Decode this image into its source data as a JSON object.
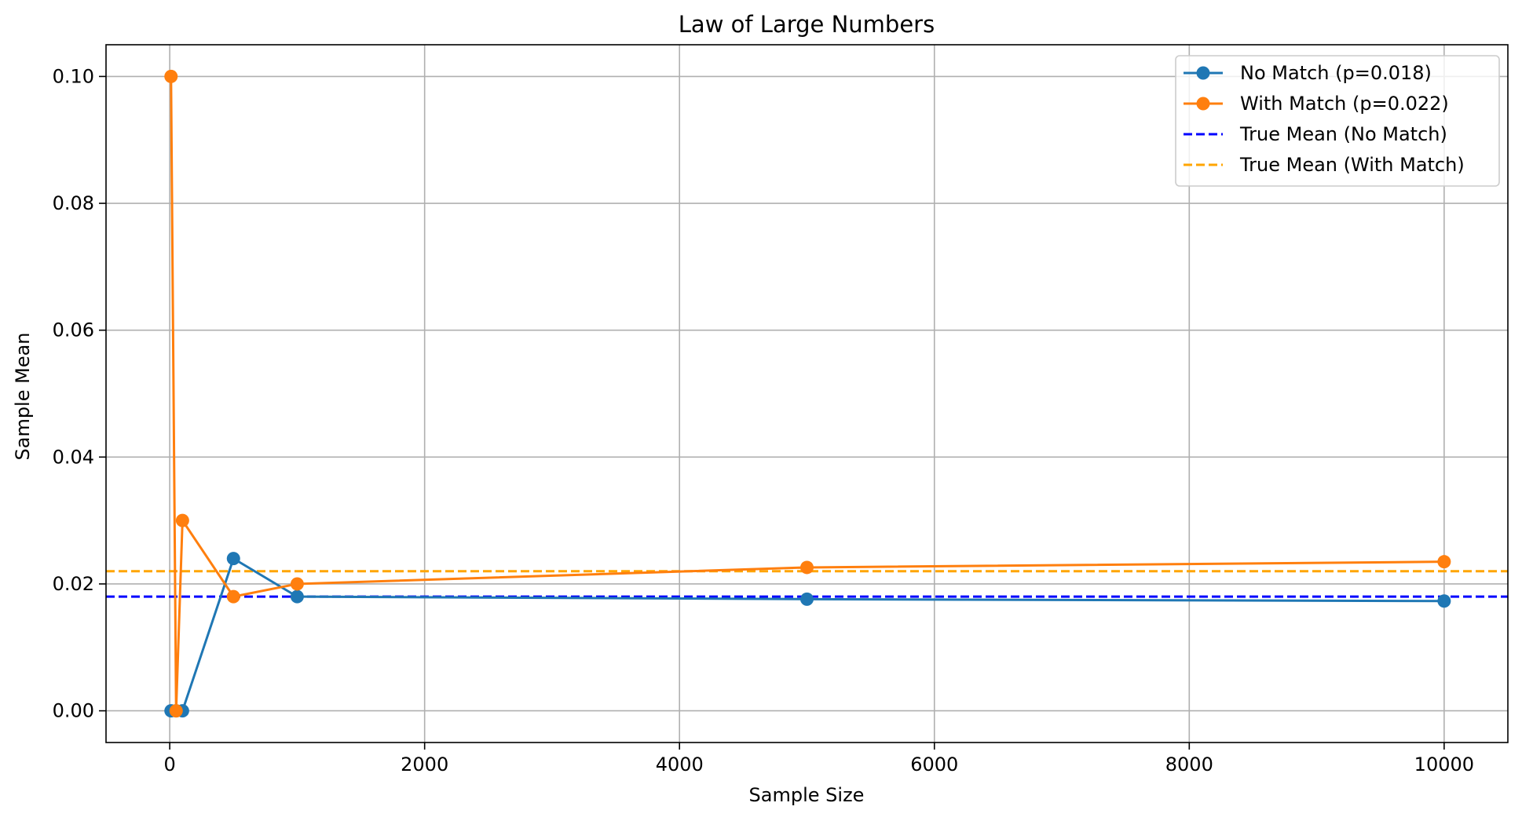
{
  "chart_data": {
    "type": "line",
    "title": "Law of Large Numbers",
    "xlabel": "Sample Size",
    "ylabel": "Sample Mean",
    "xlim": [
      -500,
      10500
    ],
    "ylim": [
      -0.005,
      0.105
    ],
    "xticks": [
      0,
      2000,
      4000,
      6000,
      8000,
      10000
    ],
    "xtick_labels": [
      "0",
      "2000",
      "4000",
      "6000",
      "8000",
      "10000"
    ],
    "yticks": [
      0.0,
      0.02,
      0.04,
      0.06,
      0.08,
      0.1
    ],
    "ytick_labels": [
      "0.00",
      "0.02",
      "0.04",
      "0.06",
      "0.08",
      "0.10"
    ],
    "grid": true,
    "legend_position": "top-right",
    "series": [
      {
        "name": "No Match (p=0.018)",
        "color": "#1f77b4",
        "style": "solid",
        "marker": "circle",
        "x": [
          10,
          50,
          100,
          500,
          1000,
          5000,
          10000
        ],
        "values": [
          0.0,
          0.0,
          0.0,
          0.024,
          0.018,
          0.0176,
          0.0173
        ]
      },
      {
        "name": "With Match (p=0.022)",
        "color": "#ff7f0e",
        "style": "solid",
        "marker": "circle",
        "x": [
          10,
          50,
          100,
          500,
          1000,
          5000,
          10000
        ],
        "values": [
          0.1,
          0.0,
          0.03,
          0.018,
          0.02,
          0.0226,
          0.0235
        ]
      }
    ],
    "reference_lines": [
      {
        "name": "True Mean (No Match)",
        "y": 0.018,
        "color": "#0000ff",
        "style": "dashed"
      },
      {
        "name": "True Mean (With Match)",
        "y": 0.022,
        "color": "#ffa500",
        "style": "dashed"
      }
    ]
  }
}
